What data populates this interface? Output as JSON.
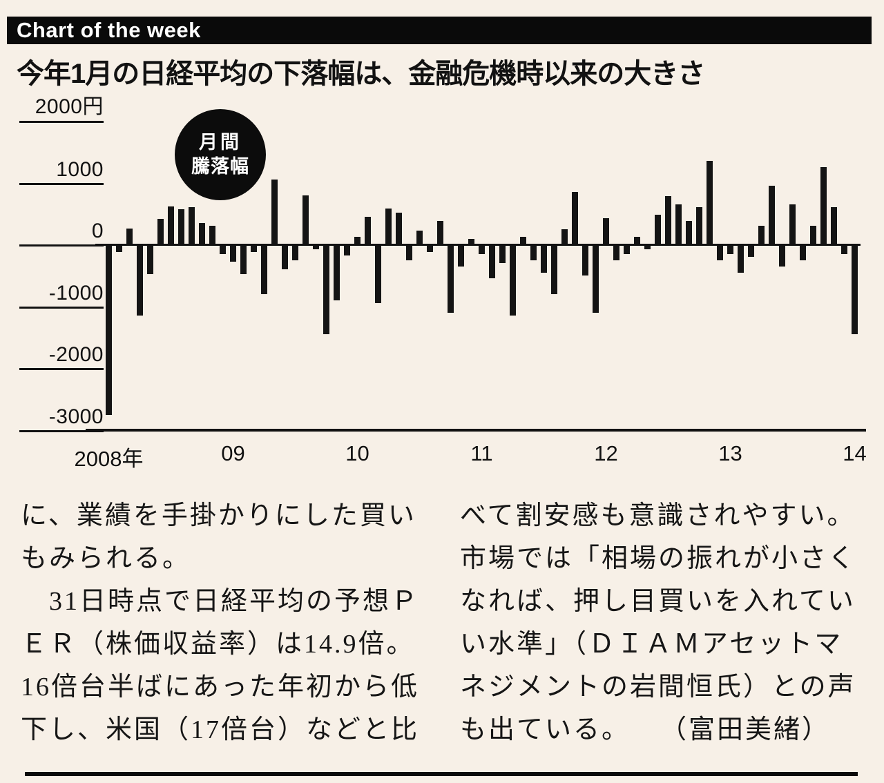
{
  "banner": {
    "title": "Chart of the week"
  },
  "headline": "今年1月の日経平均の下落幅は、金融危機時以来の大きさ",
  "chart_data": {
    "type": "bar",
    "title": "今年1月の日経平均の下落幅は、金融危機時以来の大きさ",
    "badge": {
      "line1": "月間",
      "line2": "騰落幅"
    },
    "unit": "円",
    "ylim": [
      -3000,
      2000
    ],
    "grid": false,
    "legend": "none",
    "y_ticks": [
      {
        "value": 2000,
        "label": "2000円"
      },
      {
        "value": 1000,
        "label": "1000"
      },
      {
        "value": 0,
        "label": "0"
      },
      {
        "value": -1000,
        "label": "-1000"
      },
      {
        "value": -2000,
        "label": "-2000"
      },
      {
        "value": -3000,
        "label": "-3000"
      }
    ],
    "x_ticks": [
      {
        "month_index": 0,
        "label": "2008年"
      },
      {
        "month_index": 12,
        "label": "09"
      },
      {
        "month_index": 24,
        "label": "10"
      },
      {
        "month_index": 36,
        "label": "11"
      },
      {
        "month_index": 48,
        "label": "12"
      },
      {
        "month_index": 60,
        "label": "13"
      },
      {
        "month_index": 72,
        "label": "14"
      }
    ],
    "start_month": "2008-01",
    "bar_color": "#141414",
    "values": [
      -2750,
      -120,
      260,
      -1150,
      -480,
      420,
      620,
      570,
      600,
      350,
      300,
      -150,
      -280,
      -480,
      -120,
      -800,
      1050,
      -400,
      -250,
      800,
      -80,
      -1450,
      -900,
      -180,
      130,
      450,
      -950,
      580,
      520,
      -250,
      220,
      -120,
      380,
      -1100,
      -350,
      90,
      -150,
      -550,
      -300,
      -1150,
      130,
      -250,
      -450,
      -800,
      250,
      850,
      -500,
      -1100,
      430,
      -250,
      -150,
      130,
      -80,
      480,
      780,
      650,
      380,
      600,
      1350,
      -250,
      -150,
      -450,
      -200,
      300,
      950,
      -350,
      650,
      -250,
      300,
      1250,
      600,
      -150,
      -1450
    ]
  },
  "article": {
    "left_column": [
      "に、業績を手掛かりにした買い",
      "もみられる。",
      "　31日時点で日経平均の予想Ｐ",
      "ＥＲ（株価収益率）は14.9倍。",
      "16倍台半ばにあった年初から低",
      "下し、米国（17倍台）などと比"
    ],
    "right_column": [
      "べて割安感も意識されやすい。",
      "市場では「相場の振れが小さく",
      "なれば、押し目買いを入れてい",
      "い水準」（ＤＩＡＭアセットマ",
      "ネジメントの岩間恒氏）との声",
      "も出ている。　　（富田美緒）"
    ]
  }
}
